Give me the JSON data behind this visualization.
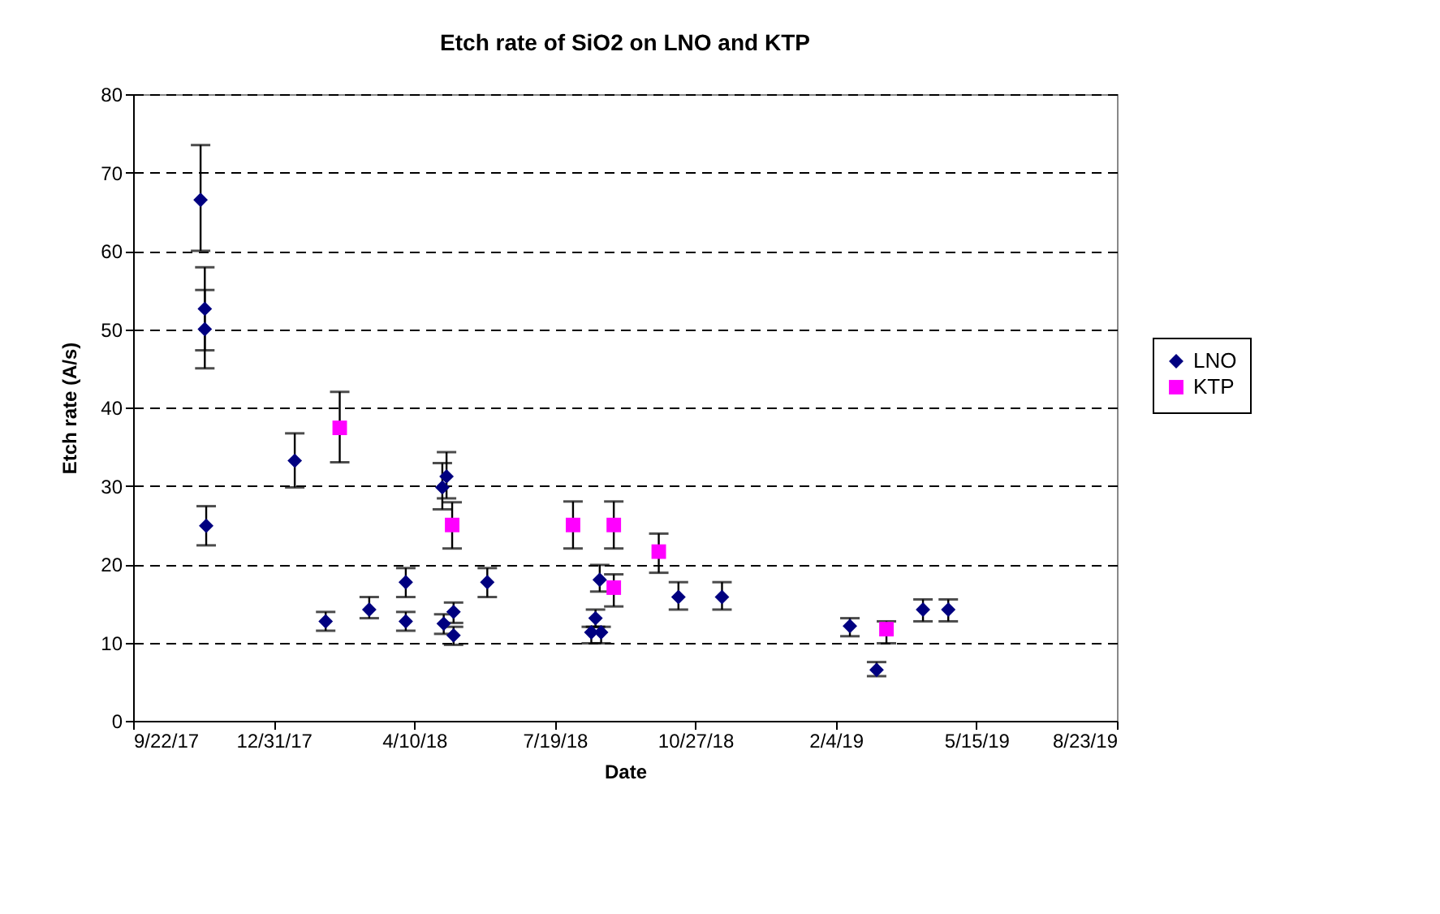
{
  "chart_data": {
    "type": "scatter",
    "title": "Etch rate of SiO2 on LNO and KTP",
    "xlabel": "Date",
    "ylabel": "Etch rate (A/s)",
    "xlim": [
      "2017-09-22",
      "2019-08-23"
    ],
    "xticks": [
      {
        "value": "2017-09-22",
        "label": "9/22/17"
      },
      {
        "value": "2017-12-31",
        "label": "12/31/17"
      },
      {
        "value": "2018-04-10",
        "label": "4/10/18"
      },
      {
        "value": "2018-07-19",
        "label": "7/19/18"
      },
      {
        "value": "2018-10-27",
        "label": "10/27/18"
      },
      {
        "value": "2019-02-04",
        "label": "2/4/19"
      },
      {
        "value": "2019-05-15",
        "label": "5/15/19"
      },
      {
        "value": "2019-08-23",
        "label": "8/23/19"
      }
    ],
    "ylim": [
      0,
      80
    ],
    "yticks": [
      0,
      10,
      20,
      30,
      40,
      50,
      60,
      70,
      80
    ],
    "grid": "y",
    "legend": "right",
    "series": [
      {
        "name": "LNO",
        "color": "#000080",
        "marker": "diamond",
        "x": [
          "2017-11-09",
          "2017-11-12",
          "2017-11-12",
          "2017-11-13",
          "2018-01-15",
          "2018-02-06",
          "2018-03-09",
          "2018-04-04",
          "2018-04-04",
          "2018-04-30",
          "2018-05-03",
          "2018-05-01",
          "2018-05-08",
          "2018-05-08",
          "2018-06-01",
          "2018-08-20",
          "2018-08-17",
          "2018-08-14",
          "2018-08-21",
          "2018-10-15",
          "2018-11-15",
          "2019-02-14",
          "2019-03-05",
          "2019-04-07",
          "2019-04-25"
        ],
        "values": [
          66.5,
          52.6,
          50.0,
          24.9,
          33.2,
          12.7,
          14.2,
          17.7,
          12.7,
          29.8,
          31.2,
          12.4,
          13.9,
          10.9,
          17.7,
          18.0,
          13.1,
          11.3,
          11.3,
          15.8,
          15.8,
          12.1,
          6.5,
          14.2,
          14.2
        ],
        "errors": [
          [
            60.0,
            73.5
          ],
          [
            47.3,
            57.9
          ],
          [
            45.0,
            55.0
          ],
          [
            22.4,
            27.4
          ],
          [
            29.8,
            36.7
          ],
          [
            11.5,
            13.9
          ],
          [
            13.1,
            15.8
          ],
          [
            15.8,
            19.5
          ],
          [
            11.5,
            13.9
          ],
          [
            27.0,
            32.9
          ],
          [
            28.4,
            34.3
          ],
          [
            11.1,
            13.6
          ],
          [
            12.5,
            15.1
          ],
          [
            9.7,
            12.0
          ],
          [
            15.8,
            19.5
          ],
          [
            16.5,
            19.9
          ],
          [
            12.0,
            14.2
          ],
          [
            9.9,
            12.0
          ],
          [
            9.9,
            12.0
          ],
          [
            14.2,
            17.7
          ],
          [
            14.2,
            17.7
          ],
          [
            10.8,
            13.1
          ],
          [
            5.7,
            7.5
          ],
          [
            12.7,
            15.5
          ],
          [
            12.7,
            15.5
          ]
        ]
      },
      {
        "name": "KTP",
        "color": "#ff00ff",
        "marker": "square",
        "x": [
          "2018-02-16",
          "2018-05-07",
          "2018-08-01",
          "2018-08-30",
          "2018-10-01",
          "2018-08-30",
          "2019-03-12"
        ],
        "values": [
          37.4,
          25.0,
          25.0,
          25.0,
          21.6,
          17.0,
          11.7
        ],
        "errors": [
          [
            33.0,
            42.0
          ],
          [
            22.0,
            27.9
          ],
          [
            22.0,
            28.0
          ],
          [
            22.0,
            28.0
          ],
          [
            18.9,
            23.9
          ],
          [
            14.6,
            18.7
          ],
          [
            9.9,
            12.7
          ]
        ]
      }
    ]
  }
}
